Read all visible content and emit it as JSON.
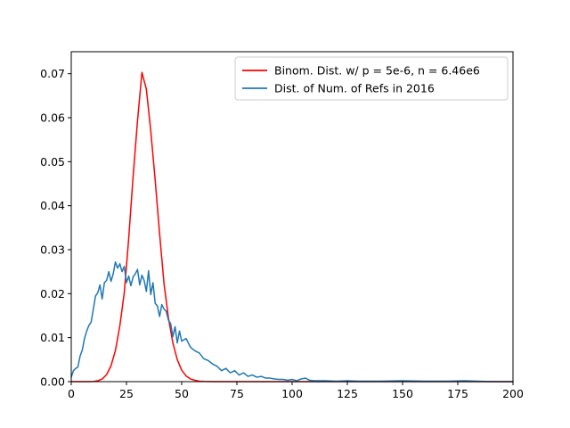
{
  "chart_data": {
    "type": "line",
    "title": "",
    "xlabel": "",
    "ylabel": "",
    "xlim": [
      0,
      200
    ],
    "ylim": [
      0,
      0.075
    ],
    "xticks": [
      0,
      25,
      50,
      75,
      100,
      125,
      150,
      175,
      200
    ],
    "xtick_labels": [
      "0",
      "25",
      "50",
      "75",
      "100",
      "125",
      "150",
      "175",
      "200"
    ],
    "yticks": [
      0,
      0.01,
      0.02,
      0.03,
      0.04,
      0.05,
      0.06,
      0.07
    ],
    "ytick_labels": [
      "0.00",
      "0.01",
      "0.02",
      "0.03",
      "0.04",
      "0.05",
      "0.06",
      "0.07"
    ],
    "grid": false,
    "legend_position": "top-right",
    "series": [
      {
        "name": "Binom. Dist. w/ p = 5e-6, n = 6.46e6",
        "color": "#ff0000",
        "x": [
          0,
          4,
          8,
          10,
          12,
          14,
          16,
          18,
          20,
          22,
          24,
          26,
          28,
          30,
          32,
          34,
          36,
          38,
          40,
          42,
          44,
          46,
          48,
          50,
          52,
          54,
          56,
          58,
          60,
          65,
          70,
          80,
          100,
          125,
          150,
          175,
          200
        ],
        "y": [
          0,
          0,
          0,
          3e-05,
          0.0002,
          0.0006,
          0.0016,
          0.0036,
          0.0071,
          0.0127,
          0.0202,
          0.0325,
          0.0466,
          0.0593,
          0.0703,
          0.0665,
          0.057,
          0.0458,
          0.0336,
          0.0223,
          0.0145,
          0.0088,
          0.005,
          0.0026,
          0.0013,
          0.0006,
          0.0003,
          0.0001,
          4e-05,
          0,
          0,
          0,
          0,
          0,
          0,
          0,
          0
        ]
      },
      {
        "name": "Dist. of Num. of Refs in 2016",
        "color": "#1f77b4",
        "x": [
          0,
          1,
          2,
          3,
          4,
          5,
          6,
          7,
          8,
          9,
          10,
          11,
          12,
          13,
          14,
          15,
          16,
          17,
          18,
          19,
          20,
          21,
          22,
          23,
          24,
          25,
          26,
          27,
          28,
          29,
          30,
          31,
          32,
          33,
          34,
          35,
          36,
          37,
          38,
          39,
          40,
          41,
          42,
          43,
          44,
          45,
          46,
          47,
          48,
          49,
          50,
          52,
          54,
          56,
          58,
          60,
          62,
          64,
          66,
          68,
          70,
          72,
          74,
          76,
          78,
          80,
          82,
          84,
          86,
          88,
          90,
          92,
          94,
          96,
          98,
          100,
          102,
          104,
          106,
          108,
          110,
          115,
          120,
          125,
          130,
          140,
          150,
          160,
          170,
          178,
          190,
          200
        ],
        "y": [
          0.001,
          0.0025,
          0.003,
          0.0033,
          0.0058,
          0.0072,
          0.0098,
          0.0115,
          0.0128,
          0.0135,
          0.0165,
          0.0195,
          0.0202,
          0.022,
          0.0188,
          0.0225,
          0.023,
          0.025,
          0.0228,
          0.0245,
          0.0272,
          0.0258,
          0.0268,
          0.025,
          0.0262,
          0.0225,
          0.024,
          0.0218,
          0.0238,
          0.0245,
          0.0255,
          0.022,
          0.0242,
          0.023,
          0.0205,
          0.0252,
          0.0198,
          0.0225,
          0.0178,
          0.0172,
          0.0148,
          0.0175,
          0.0165,
          0.016,
          0.014,
          0.0132,
          0.0102,
          0.0125,
          0.0088,
          0.0115,
          0.0092,
          0.0098,
          0.0078,
          0.007,
          0.0065,
          0.0052,
          0.0048,
          0.004,
          0.0035,
          0.0025,
          0.003,
          0.002,
          0.0025,
          0.0015,
          0.002,
          0.0012,
          0.0015,
          0.001,
          0.0012,
          0.0008,
          0.0008,
          0.0006,
          0.0005,
          0.0005,
          0.0003,
          0.0005,
          0.0002,
          0.0006,
          0.0008,
          0.0003,
          0.0002,
          0.0002,
          0.0001,
          0.0002,
          0.0001,
          0.0001,
          0.0002,
          0.0001,
          0.0001,
          0.0002,
          0.0,
          0.0
        ]
      }
    ]
  }
}
